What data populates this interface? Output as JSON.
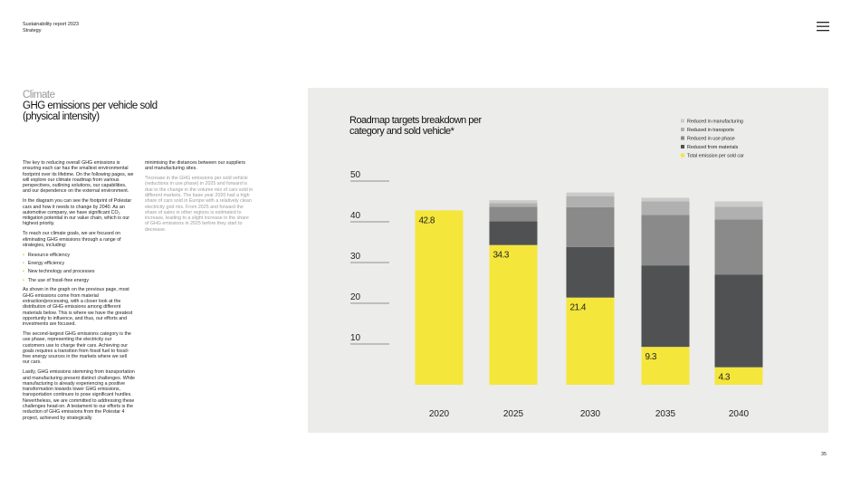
{
  "header": {
    "report": "Sustainability report 2023",
    "section": "Strategy"
  },
  "kicker": "Climate",
  "title": "GHG emissions per vehicle sold (physical intensity)",
  "column1": {
    "paragraphs": [
      "The key to reducing overall GHG emissions is ensuring each car has the smallest environmental footprint over its lifetime. On the following pages, we will explore our climate roadmap from various perspectives, outlining solutions, our capabilities, and our dependence on the external environment.",
      "In the diagram you can see the footprint of Polestar cars and how it needs to change by 2040. As an automotive company, we have significant CO₂ mitigation potential in our value chain, which is our highest priority.",
      "To reach our climate goals, we are focused on eliminating GHG emissions through a range of strategies, including:"
    ],
    "bullets": [
      "Resource efficiency",
      "Energy efficiency",
      "New technology and processes",
      "The use of fossil-free energy"
    ],
    "paragraphs_after": [
      "As shown in the graph on the previous page, most GHG emissions come from material extraction/processing, with a closer look at the distribution of GHG emissions among different materials below. This is where we have the greatest opportunity to influence, and thus, our efforts and investments are focused.",
      "The second-largest GHG emissions category is the use phase, representing the electricity our customers use to charge their cars. Achieving our goals requires a transition from fossil fuel to fossil-free energy sources in the markets where we sell our cars.",
      "Lastly, GHG emissions stemming from transportation and manufacturing present distinct challenges. While manufacturing is already experiencing a positive transformation towards lower GHG emissions, transportation continues to pose significant hurdles. Nevertheless, we are committed to addressing these challenges head-on. A testament to our efforts is the reduction of GHG emissions from the Polestar 4 project, achieved by strategically"
    ]
  },
  "column2": {
    "paragraph": "minimising the distances between our suppliers and manufacturing sites.",
    "footnote": "*Increase in the GHG emissions per sold vehicle (reductions in use phase) in 2025 and forward is due to the change in the volume mix of cars sold in different markets. The base year 2020 had a high share of cars sold in Europe with a relatively clean electricity grid mix. From 2025 and forward the share of sales in other regions is estimated to increase, leading to a slight increase in the share of GHG emissions in 2025 before they start to decrease."
  },
  "page_number": "35",
  "chart_data": {
    "type": "stacked_bar",
    "title": "Roadmap targets breakdown per category and sold vehicle*",
    "categories": [
      "2020",
      "2025",
      "2030",
      "2035",
      "2040"
    ],
    "series": [
      {
        "name": "Total emission per sold car",
        "color": "#f5e63c",
        "values": [
          42.8,
          34.3,
          21.4,
          9.3,
          4.3
        ]
      },
      {
        "name": "Reduced from materials",
        "color": "#4f5152",
        "values": [
          null,
          5.8,
          12.4,
          20,
          22.7
        ]
      },
      {
        "name": "Reduced in use phase",
        "color": "#8a8a8a",
        "values": [
          null,
          3.6,
          9.8,
          12.4,
          13.6
        ]
      },
      {
        "name": "Reduced in transports",
        "color": "#b0b0b0",
        "values": [
          null,
          0.9,
          2.7,
          3.3,
          3.1
        ]
      },
      {
        "name": "Reduced in manufacturing",
        "color": "#cbcbcb",
        "values": [
          null,
          0.7,
          0.9,
          0.9,
          1.3
        ]
      }
    ],
    "legend_order": [
      4,
      3,
      2,
      1,
      0
    ],
    "ylim": [
      0,
      50
    ],
    "yticks": [
      10,
      20,
      30,
      40,
      50
    ]
  }
}
